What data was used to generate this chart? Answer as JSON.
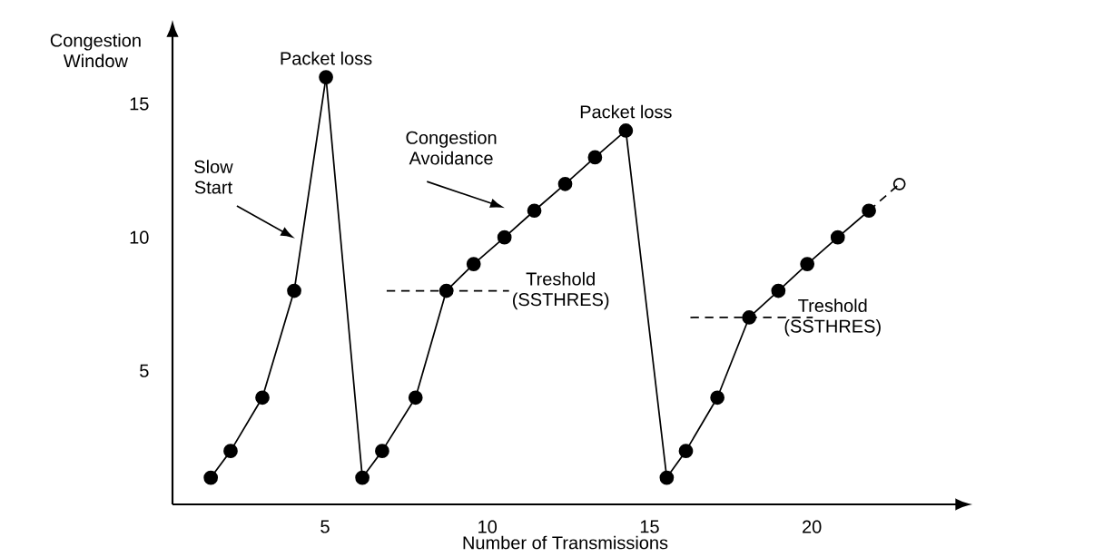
{
  "chart_data": {
    "type": "line",
    "xlabel": "Number of Transmissions",
    "ylabel": "Congestion Window",
    "xlim": [
      0.3,
      24.5
    ],
    "ylim": [
      0,
      17.6
    ],
    "xticks": [
      5,
      10,
      15,
      20
    ],
    "yticks": [
      5,
      10,
      15
    ],
    "grid": false,
    "series": [
      {
        "color": "#000000",
        "x": [
          6.9,
          10.67
        ],
        "values": [
          8,
          8
        ],
        "line_style": "dashed",
        "marker": "none"
      },
      {
        "color": "#000000",
        "x": [
          16.26,
          20.03
        ],
        "values": [
          7,
          7
        ],
        "line_style": "dashed",
        "marker": "none"
      },
      {
        "color": "#000000",
        "x": [
          21.76,
          22.7
        ],
        "values": [
          11,
          12
        ],
        "line_style": "dashed",
        "marker": "circle"
      },
      {
        "color": "#000000",
        "x": [
          1.48,
          2.09,
          3.07,
          4.05,
          5.03,
          6.15,
          6.76,
          7.79,
          8.74,
          9.58,
          10.53,
          11.45,
          12.4,
          13.32,
          14.27,
          15.53,
          16.12,
          17.09,
          18.07,
          18.97,
          19.86,
          20.8,
          21.76
        ],
        "values": [
          1,
          2,
          4,
          8,
          16,
          1,
          2,
          4,
          8,
          9,
          10,
          11,
          12,
          13,
          14,
          1,
          2,
          4,
          7,
          8,
          9,
          10,
          11
        ],
        "line_style": "solid",
        "marker": "circle"
      }
    ],
    "annotations": [
      {
        "text": "Packet loss",
        "x": 5.03,
        "y": 16
      },
      "Slow Start",
      "Congestion Avoidance",
      {
        "text": "Packet loss",
        "x": 14.27,
        "y": 14
      },
      {
        "text": "Treshold (SSTHRES)",
        "x": 10.67,
        "y": 8
      },
      {
        "text": "Treshold (SSTHRES)",
        "x": 20.03,
        "y": 7
      }
    ]
  }
}
